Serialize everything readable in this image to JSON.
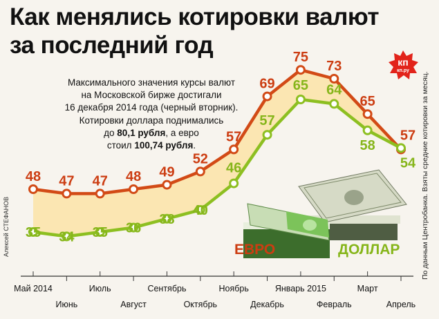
{
  "title_lines": [
    "Как менялись котировки валют",
    "за последний год"
  ],
  "note": {
    "line1": "Максимального значения курсы валют",
    "line2": "на Московской бирже достигали",
    "line3": "16 декабря 2014 года (черный вторник).",
    "line4": "Котировки доллара поднимались",
    "line5_pre": "до ",
    "line5_bold": "80,1 рубля",
    "line5_post": ", а евро",
    "line6_pre": "стоил ",
    "line6_bold": "100,74 рубля",
    "line6_post": "."
  },
  "credit": "Алексей СТЕФАНОВ",
  "source": "По данным Центробанка. Взяты средние котировки за месяц.",
  "logo": {
    "text1": "кп",
    "text2": "кп.ру",
    "color": "#e2231a"
  },
  "colors": {
    "euro": "#d24a16",
    "dollar": "#8dbf21",
    "label_euro": "#cc3d12",
    "label_dollar": "#86b51a",
    "fill": "#fbe6b2",
    "axis": "#333333"
  },
  "chart_data": {
    "type": "line",
    "categories": [
      "Май 2014",
      "Июнь",
      "Июль",
      "Август",
      "Сентябрь",
      "Октябрь",
      "Ноябрь",
      "Декабрь",
      "Январь 2015",
      "Февраль",
      "Март",
      "Апрель"
    ],
    "series": [
      {
        "name": "ЕВРО",
        "values": [
          48,
          47,
          47,
          48,
          49,
          52,
          57,
          69,
          75,
          73,
          65,
          57
        ]
      },
      {
        "name": "ДОЛЛАР",
        "values": [
          35,
          34,
          35,
          36,
          38,
          40,
          46,
          57,
          65,
          64,
          58,
          54
        ]
      }
    ],
    "xlabel": "",
    "ylabel": "",
    "grid": false,
    "legend": "labels on chart"
  }
}
